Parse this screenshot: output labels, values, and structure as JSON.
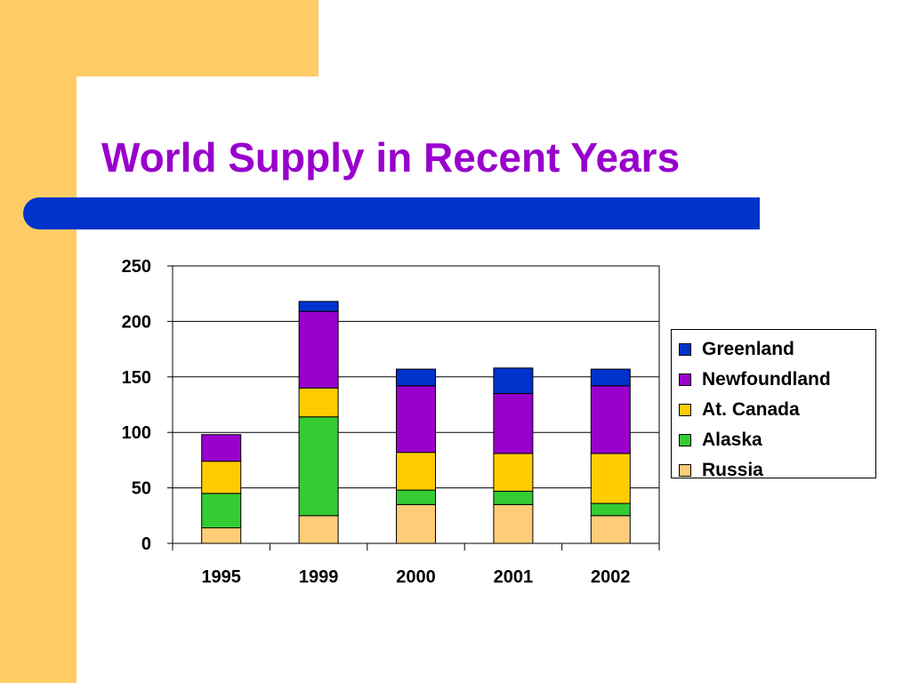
{
  "slide": {
    "title": "World Supply in Recent Years",
    "colors": {
      "background_accent": "#FFCC66",
      "title_color": "#9900CC",
      "bar_color": "#0033CC"
    }
  },
  "chart_data": {
    "type": "bar",
    "stacked": true,
    "categories": [
      "1995",
      "1999",
      "2000",
      "2001",
      "2002"
    ],
    "series": [
      {
        "name": "Russia",
        "color": "#FFCC77",
        "values": [
          14,
          25,
          35,
          35,
          25
        ]
      },
      {
        "name": "Alaska",
        "color": "#33CC33",
        "values": [
          31,
          89,
          13,
          12,
          11
        ]
      },
      {
        "name": "At. Canada",
        "color": "#FFCC00",
        "values": [
          29,
          26,
          34,
          34,
          45
        ]
      },
      {
        "name": "Newfoundland",
        "color": "#9900CC",
        "values": [
          24,
          69,
          60,
          54,
          61
        ]
      },
      {
        "name": "Greenland",
        "color": "#0033CC",
        "values": [
          0,
          9,
          15,
          23,
          15
        ]
      }
    ],
    "legend_order": [
      "Greenland",
      "Newfoundland",
      "At. Canada",
      "Alaska",
      "Russia"
    ],
    "ylim": [
      0,
      250
    ],
    "yticks": [
      "0",
      "50",
      "100",
      "150",
      "200",
      "250"
    ],
    "grid": true,
    "legend_position": "right"
  }
}
